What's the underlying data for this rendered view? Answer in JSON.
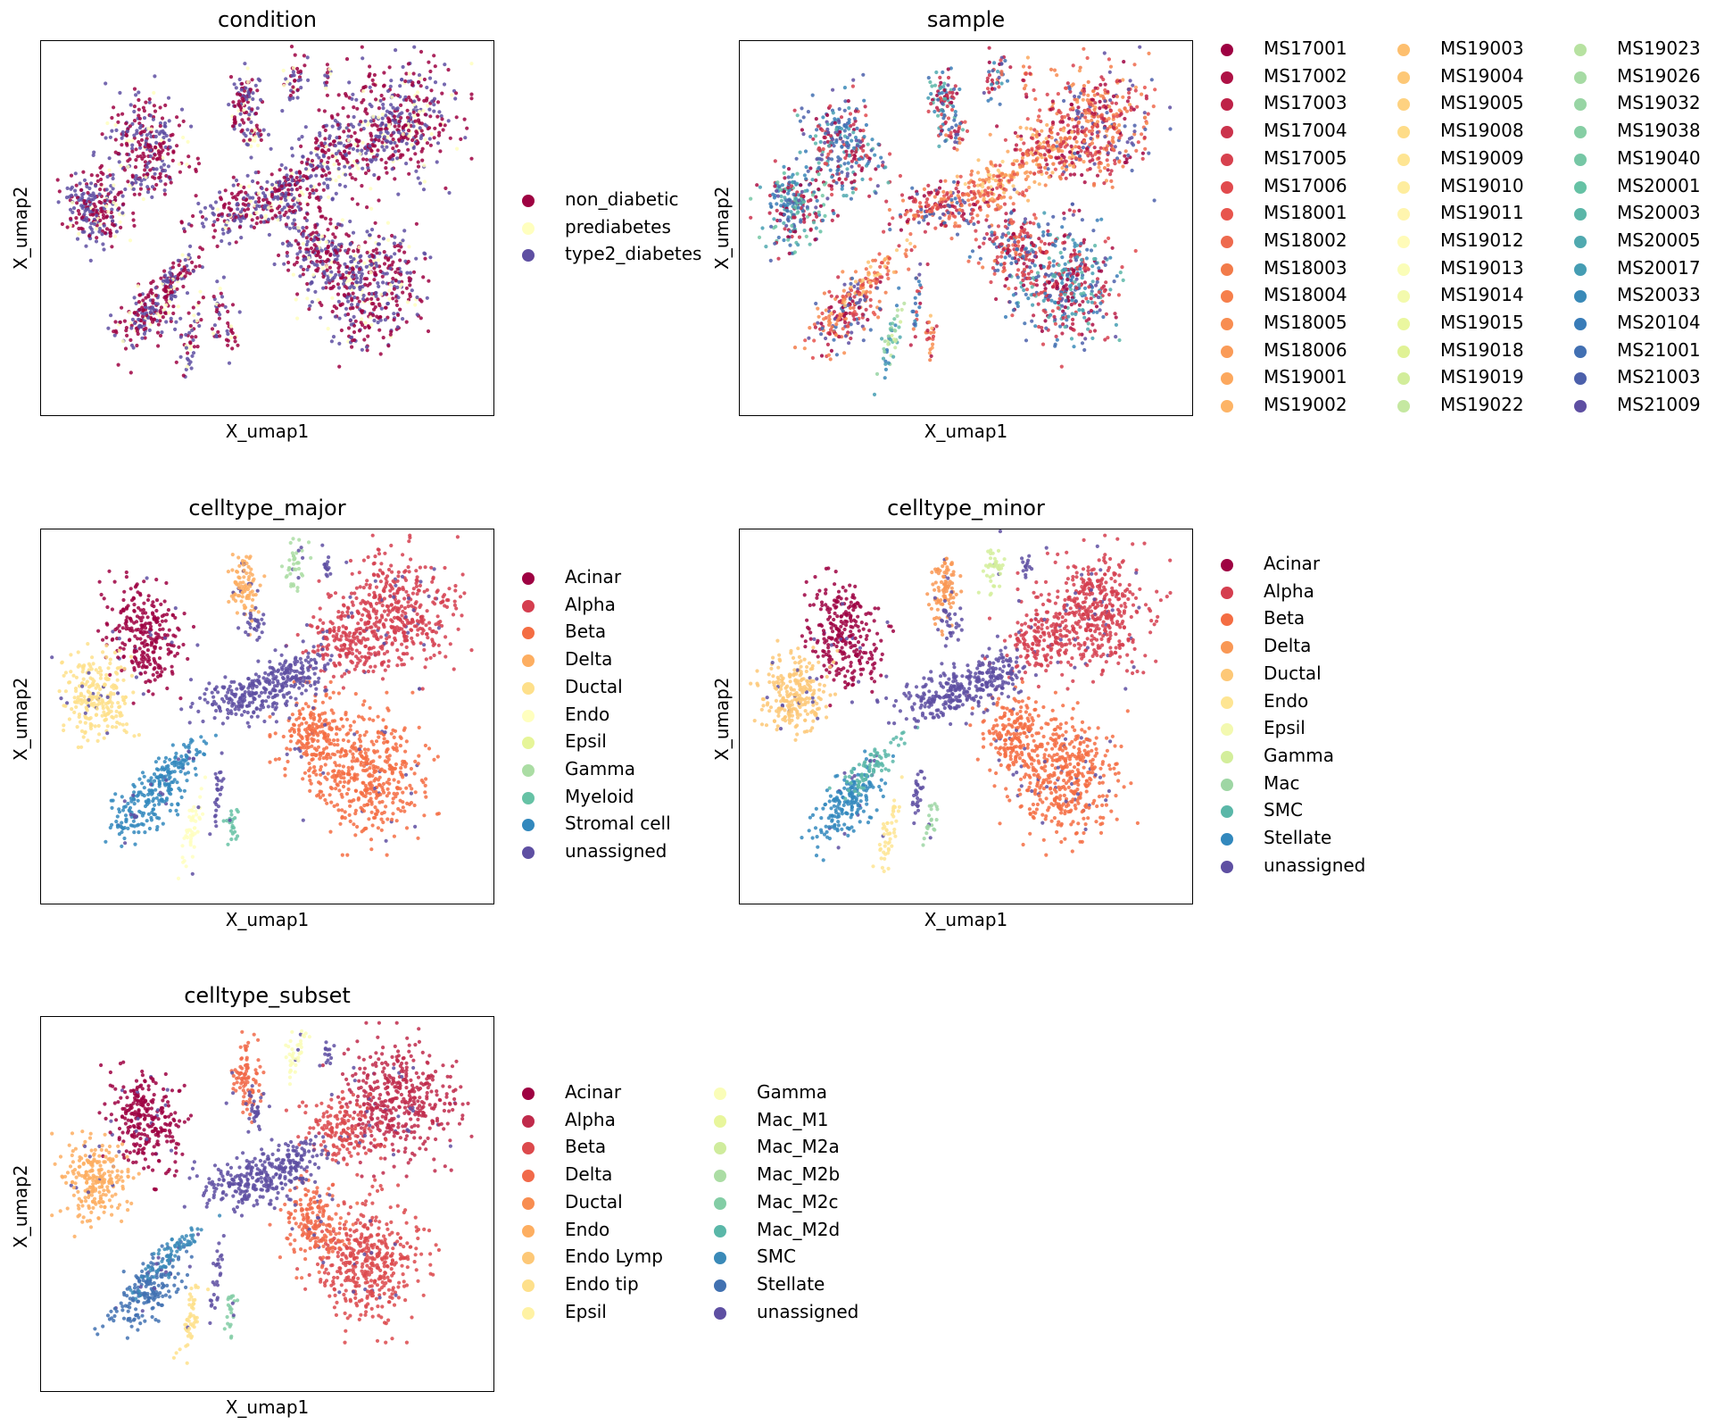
{
  "chart_data": [
    {
      "type": "scatter",
      "title": "condition",
      "xlabel": "X_umap1",
      "ylabel": "X_umap2",
      "grid": false,
      "legend_placement": "right",
      "categories": [
        "non_diabetic",
        "prediabetes",
        "type2_diabetes"
      ],
      "colors": [
        "#9e0142",
        "#ffffbf",
        "#5e4fa2"
      ]
    },
    {
      "type": "scatter",
      "title": "sample",
      "xlabel": "X_umap1",
      "ylabel": "X_umap2",
      "grid": false,
      "legend_placement": "right",
      "legend_columns": 3,
      "categories": [
        "MS17001",
        "MS17002",
        "MS17003",
        "MS17004",
        "MS17005",
        "MS17006",
        "MS18001",
        "MS18002",
        "MS18003",
        "MS18004",
        "MS18005",
        "MS18006",
        "MS19001",
        "MS19002",
        "MS19003",
        "MS19004",
        "MS19005",
        "MS19008",
        "MS19009",
        "MS19010",
        "MS19011",
        "MS19012",
        "MS19013",
        "MS19014",
        "MS19015",
        "MS19018",
        "MS19019",
        "MS19022",
        "MS19023",
        "MS19026",
        "MS19032",
        "MS19038",
        "MS19040",
        "MS20001",
        "MS20003",
        "MS20005",
        "MS20017",
        "MS20033",
        "MS20104",
        "MS21001",
        "MS21003",
        "MS21009"
      ],
      "colors": [
        "#9e0142",
        "#ae1145",
        "#be2248",
        "#cb334c",
        "#d7414e",
        "#e14a4d",
        "#e8554d",
        "#ee6a4e",
        "#f27b4a",
        "#f67f4b",
        "#f88d51",
        "#fa9b58",
        "#fca85e",
        "#fdb466",
        "#fdbf6f",
        "#fdc877",
        "#fed281",
        "#fedc88",
        "#fee593",
        "#feed9e",
        "#fff5ae",
        "#fffbb8",
        "#fafdb8",
        "#f3faad",
        "#eaf79f",
        "#e0f295",
        "#d2ed9b",
        "#c5e8a1",
        "#b7e2a1",
        "#a6dba4",
        "#98d5a4",
        "#86cea4",
        "#76c7a5",
        "#66c2a5",
        "#5bb6a8",
        "#50a9af",
        "#459db3",
        "#3a8ab8",
        "#397cb8",
        "#4270b2",
        "#4c60ab",
        "#5e4fa2"
      ]
    },
    {
      "type": "scatter",
      "title": "celltype_major",
      "xlabel": "X_umap1",
      "ylabel": "X_umap2",
      "grid": false,
      "legend_placement": "right",
      "categories": [
        "Acinar",
        "Alpha",
        "Beta",
        "Delta",
        "Ductal",
        "Endo",
        "Epsil",
        "Gamma",
        "Myeloid",
        "Stromal cell",
        "unassigned"
      ],
      "colors": [
        "#9e0142",
        "#d53e4f",
        "#f46d43",
        "#fdae61",
        "#fee08b",
        "#ffffbf",
        "#e6f598",
        "#abdda4",
        "#66c2a5",
        "#3288bd",
        "#5e4fa2"
      ]
    },
    {
      "type": "scatter",
      "title": "celltype_minor",
      "xlabel": "X_umap1",
      "ylabel": "X_umap2",
      "grid": false,
      "legend_placement": "right",
      "categories": [
        "Acinar",
        "Alpha",
        "Beta",
        "Delta",
        "Ductal",
        "Endo",
        "Epsil",
        "Gamma",
        "Mac",
        "SMC",
        "Stellate",
        "unassigned"
      ],
      "colors": [
        "#9e0142",
        "#d53e4f",
        "#f46d43",
        "#f99855",
        "#fdc877",
        "#fee593",
        "#f3f9b0",
        "#d3ee9b",
        "#9ed6a4",
        "#5ab7a8",
        "#3288bd",
        "#5e4fa2"
      ]
    },
    {
      "type": "scatter",
      "title": "celltype_subset",
      "xlabel": "X_umap1",
      "ylabel": "X_umap2",
      "grid": false,
      "legend_placement": "right",
      "legend_columns": 2,
      "categories": [
        "Acinar",
        "Alpha",
        "Beta",
        "Delta",
        "Ductal",
        "Endo",
        "Endo Lymp",
        "Endo tip",
        "Epsil",
        "Gamma",
        "Mac_M1",
        "Mac_M2a",
        "Mac_M2b",
        "Mac_M2c",
        "Mac_M2d",
        "SMC",
        "Stellate",
        "unassigned"
      ],
      "colors": [
        "#9e0142",
        "#c02a4b",
        "#dc494c",
        "#f16a4a",
        "#f88d51",
        "#fdae61",
        "#fdc877",
        "#fee08b",
        "#fff2a4",
        "#fafdb8",
        "#e8f69c",
        "#cfec9d",
        "#abdda4",
        "#83cda5",
        "#5ab7a8",
        "#3a8ab8",
        "#4171b1",
        "#5e4fa2"
      ]
    }
  ]
}
